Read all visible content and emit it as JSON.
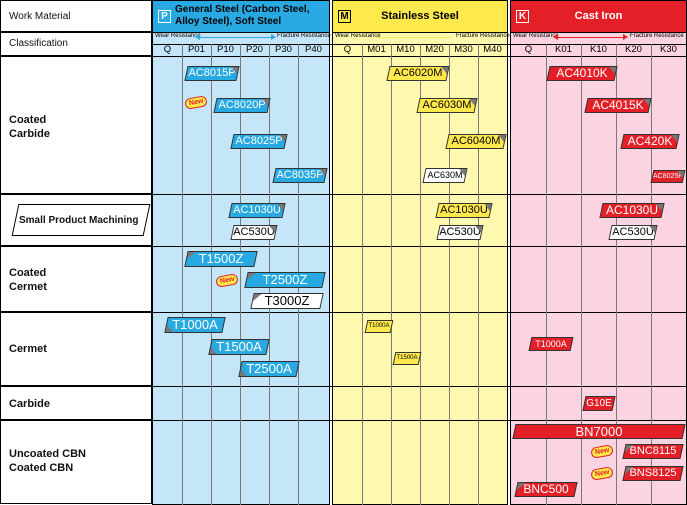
{
  "header": {
    "work_material": "Work Material",
    "classification": "Classification",
    "wear_resistance": "Wear Resistance",
    "fracture_resistance": "Fracture Resistance"
  },
  "groups": [
    {
      "letter": "P",
      "title": "General Steel (Carbon Steel, Alloy Steel), Soft Steel",
      "color": "#c5e6f8",
      "accent": "#29a9e1",
      "grades": [
        "Q",
        "P01",
        "P10",
        "P20",
        "P30",
        "P40"
      ]
    },
    {
      "letter": "M",
      "title": "Stainless Steel",
      "color": "#fff9b0",
      "accent": "#ffe94d",
      "grades": [
        "Q",
        "M01",
        "M10",
        "M20",
        "M30",
        "M40"
      ]
    },
    {
      "letter": "K",
      "title": "Cast Iron",
      "color": "#fcd3e1",
      "accent": "#e32027",
      "grades": [
        "Q",
        "K01",
        "K10",
        "K20",
        "K30"
      ]
    }
  ],
  "rows": [
    {
      "label": "Coated\nCarbide"
    },
    {
      "label": "Small Product Machining"
    },
    {
      "label": "Coated\nCermet"
    },
    {
      "label": "Cermet"
    },
    {
      "label": "Carbide"
    },
    {
      "label": "Uncoated CBN\nCoated CBN"
    }
  ],
  "new_label": "New",
  "products": {
    "p_coated": [
      "AC8015P",
      "AC8020P",
      "AC8025P",
      "AC8035P"
    ],
    "m_coated": [
      "AC6020M",
      "AC6030M",
      "AC6040M",
      "AC630M"
    ],
    "k_coated": [
      "AC4010K",
      "AC4015K",
      "AC420K",
      "AC8025P"
    ],
    "p_small": [
      "AC1030U",
      "AC530U"
    ],
    "m_small": [
      "AC1030U",
      "AC530U"
    ],
    "k_small": [
      "AC1030U",
      "AC530U"
    ],
    "p_cermet_coated": [
      "T1500Z",
      "T2500Z",
      "T3000Z"
    ],
    "p_cermet": [
      "T1000A",
      "T1500A",
      "T2500A"
    ],
    "m_cermet": [
      "T1000A",
      "T1500A"
    ],
    "k_cermet": [
      "T1000A"
    ],
    "k_carbide": [
      "G10E"
    ],
    "k_cbn": [
      "BN7000",
      "BNC8115",
      "BNS8125",
      "BNC500"
    ]
  },
  "colors": {
    "blue": "#29a9e1",
    "yellow": "#ffe94d",
    "red": "#e32027"
  }
}
